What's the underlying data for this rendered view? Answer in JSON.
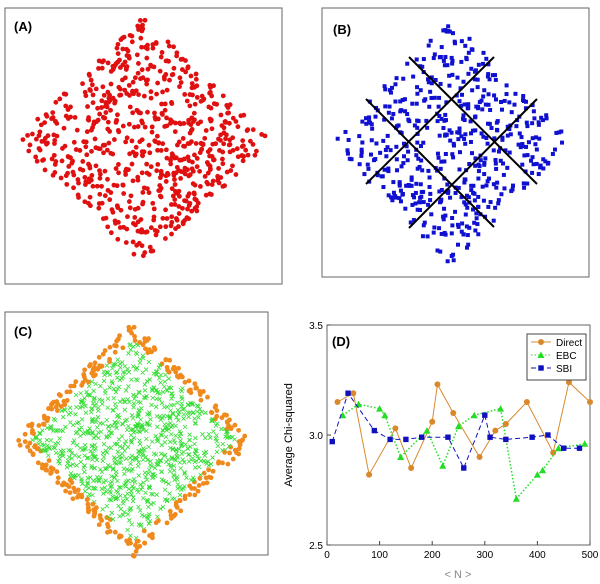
{
  "panels": {
    "a": {
      "label": "(A)",
      "type": "scatter",
      "color": "#e01010",
      "shape": "diamond"
    },
    "b": {
      "label": "(B)",
      "type": "scatter",
      "color": "#1010d0",
      "shape": "diamond",
      "grid_lines": "3x3 partition",
      "line_color": "#000000"
    },
    "c": {
      "label": "(C)",
      "type": "scatter",
      "colors": {
        "boundary": "#f08a1c",
        "interior": "#33dd33"
      },
      "shape": "diamond"
    }
  },
  "chart_data": {
    "label": "(D)",
    "type": "line",
    "xlabel": "< N >",
    "ylabel": "Average Chi-squared",
    "xlim": [
      0,
      500
    ],
    "ylim": [
      2.5,
      3.5
    ],
    "xticks": [
      "0",
      "100",
      "200",
      "300",
      "400",
      "500"
    ],
    "yticks": [
      "2.5",
      "3.0",
      "3.5"
    ],
    "legend": "top-right",
    "series": [
      {
        "name": "Direct",
        "color": "#d9892c",
        "marker": "circle",
        "line": "solid",
        "x": [
          20,
          50,
          80,
          130,
          160,
          200,
          210,
          240,
          290,
          320,
          340,
          380,
          430,
          460,
          500
        ],
        "y": [
          3.15,
          3.19,
          2.82,
          3.03,
          2.85,
          3.06,
          3.23,
          3.1,
          2.9,
          3.02,
          3.05,
          3.15,
          2.92,
          3.24,
          3.15
        ]
      },
      {
        "name": "EBC",
        "color": "#22dd22",
        "marker": "triangle",
        "line": "dotted",
        "x": [
          30,
          60,
          100,
          110,
          140,
          190,
          220,
          250,
          280,
          330,
          360,
          400,
          410,
          440,
          490
        ],
        "y": [
          3.09,
          3.14,
          3.12,
          3.09,
          2.9,
          3.02,
          2.86,
          3.04,
          3.09,
          3.12,
          2.71,
          2.82,
          2.84,
          2.94,
          2.96
        ]
      },
      {
        "name": "SBI",
        "color": "#1010c0",
        "marker": "square",
        "line": "dashed",
        "x": [
          10,
          40,
          90,
          120,
          150,
          180,
          230,
          260,
          300,
          310,
          340,
          390,
          420,
          450,
          480
        ],
        "y": [
          2.97,
          3.19,
          3.02,
          2.98,
          2.98,
          2.99,
          2.99,
          2.85,
          3.09,
          2.99,
          2.98,
          2.99,
          3.0,
          2.94,
          2.94
        ]
      }
    ]
  }
}
